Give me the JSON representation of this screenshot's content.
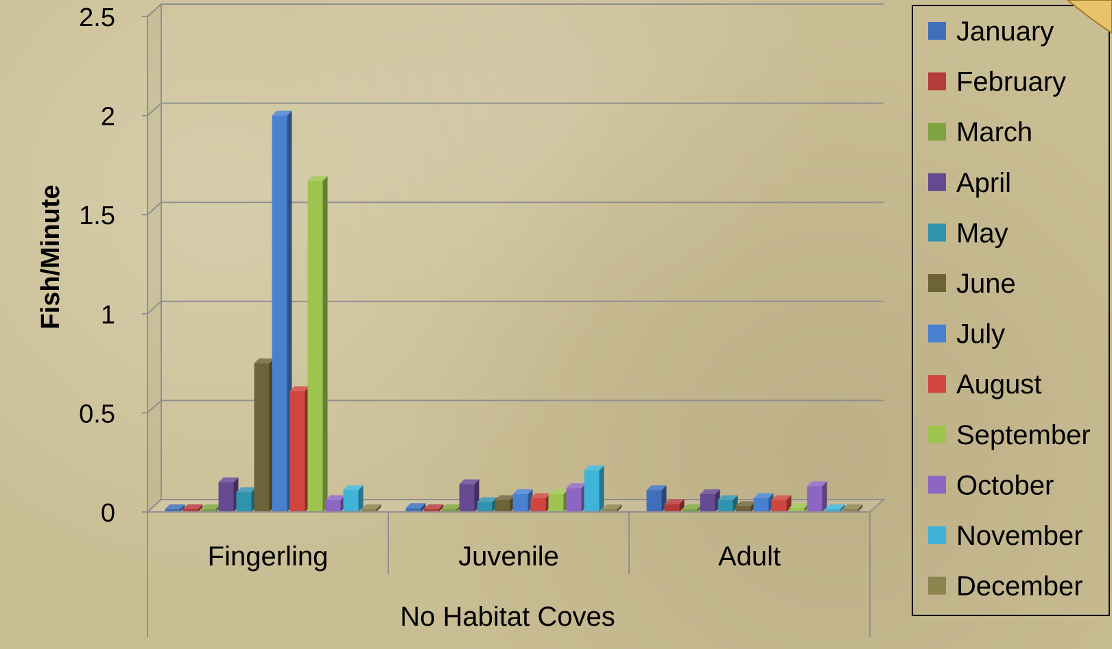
{
  "chart_data": {
    "type": "bar",
    "title": "",
    "xlabel": "No Habitat Coves",
    "ylabel": "Fish/Minute",
    "ylim": [
      0,
      2.5
    ],
    "yticks": [
      "0",
      "0.5",
      "1",
      "1.5",
      "2",
      "2.5"
    ],
    "grid": true,
    "legend_position": "right",
    "categories": [
      "Fingerling",
      "Juvenile",
      "Adult"
    ],
    "series": [
      {
        "name": "January",
        "color": "#3f6fb8",
        "values": [
          0.01,
          0.02,
          0.11
        ]
      },
      {
        "name": "February",
        "color": "#b53a3a",
        "values": [
          0.01,
          0.01,
          0.04
        ]
      },
      {
        "name": "March",
        "color": "#7ea340",
        "values": [
          0.01,
          0.0,
          0.01
        ]
      },
      {
        "name": "April",
        "color": "#654a92",
        "values": [
          0.15,
          0.14,
          0.09
        ]
      },
      {
        "name": "May",
        "color": "#2f93ad",
        "values": [
          0.1,
          0.05,
          0.06
        ]
      },
      {
        "name": "June",
        "color": "#6e6338",
        "values": [
          0.75,
          0.06,
          0.03
        ]
      },
      {
        "name": "July",
        "color": "#4a80d0",
        "values": [
          2.0,
          0.09,
          0.07
        ]
      },
      {
        "name": "August",
        "color": "#d0463f",
        "values": [
          0.61,
          0.07,
          0.06
        ]
      },
      {
        "name": "September",
        "color": "#9cc44f",
        "values": [
          1.67,
          0.09,
          0.02
        ]
      },
      {
        "name": "October",
        "color": "#8d65c2",
        "values": [
          0.06,
          0.12,
          0.13
        ]
      },
      {
        "name": "November",
        "color": "#3fb4d8",
        "values": [
          0.11,
          0.21,
          0.0
        ]
      },
      {
        "name": "December",
        "color": "#8d8450",
        "values": [
          0.0,
          0.0,
          0.0
        ]
      }
    ]
  }
}
